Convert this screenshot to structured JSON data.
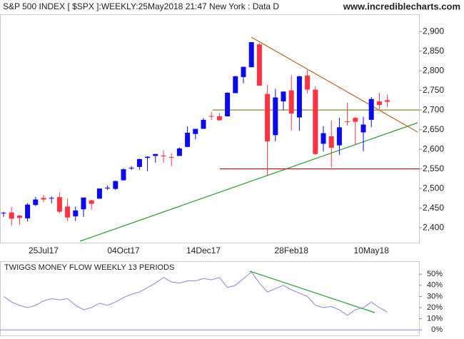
{
  "chart_data": [
    {
      "type": "candlestick",
      "title": "S&P 500 INDEX [ $SPX ]:WEEKLY:25May2018 21:47 New York : Data D",
      "source": "www.incrediblecharts.com",
      "categories": [
        null,
        null,
        null,
        null,
        null,
        "25Jul17",
        null,
        null,
        null,
        null,
        null,
        null,
        null,
        null,
        null,
        "04Oct17",
        null,
        null,
        null,
        null,
        null,
        null,
        null,
        null,
        null,
        "14Dec17",
        null,
        null,
        null,
        null,
        null,
        null,
        null,
        null,
        null,
        null,
        "28Feb18",
        null,
        null,
        null,
        null,
        null,
        null,
        null,
        null,
        null,
        "10May18",
        null,
        null
      ],
      "open": [
        2437,
        2439,
        2431,
        2424,
        2458,
        2476,
        2475,
        2478,
        2454,
        2429,
        2447,
        2470,
        2474,
        2500,
        2499,
        2521,
        2551,
        2555,
        2578,
        2583,
        2584,
        2580,
        2583,
        2606,
        2639,
        2652,
        2685,
        2684,
        2684,
        2743,
        2784,
        2809,
        2867,
        2741,
        2636,
        2722,
        2750,
        2681,
        2788,
        2752,
        2614,
        2633,
        2610,
        2671,
        2680,
        2643,
        2675,
        2722,
        2725
      ],
      "high": [
        2441,
        2453,
        2433,
        2463,
        2479,
        2484,
        2480,
        2490,
        2474,
        2454,
        2477,
        2471,
        2500,
        2508,
        2520,
        2552,
        2557,
        2576,
        2582,
        2588,
        2597,
        2590,
        2605,
        2658,
        2652,
        2680,
        2695,
        2692,
        2745,
        2787,
        2811,
        2873,
        2870,
        2764,
        2754,
        2748,
        2789,
        2787,
        2802,
        2761,
        2659,
        2673,
        2680,
        2718,
        2683,
        2683,
        2733,
        2743,
        2739
      ],
      "low": [
        2428,
        2405,
        2407,
        2416,
        2455,
        2465,
        2462,
        2437,
        2417,
        2417,
        2428,
        2446,
        2474,
        2496,
        2496,
        2520,
        2547,
        2548,
        2544,
        2566,
        2566,
        2557,
        2583,
        2605,
        2625,
        2652,
        2675,
        2673,
        2683,
        2743,
        2768,
        2809,
        2763,
        2533,
        2620,
        2699,
        2648,
        2647,
        2743,
        2585,
        2594,
        2553,
        2586,
        2660,
        2612,
        2595,
        2656,
        2702,
        2707
      ],
      "close": [
        2438,
        2423,
        2425,
        2459,
        2472,
        2472,
        2476,
        2441,
        2426,
        2444,
        2477,
        2461,
        2500,
        2502,
        2519,
        2549,
        2553,
        2575,
        2581,
        2588,
        2582,
        2579,
        2602,
        2642,
        2652,
        2675,
        2683,
        2674,
        2744,
        2786,
        2810,
        2873,
        2762,
        2620,
        2732,
        2747,
        2691,
        2786,
        2752,
        2588,
        2641,
        2604,
        2656,
        2670,
        2670,
        2663,
        2728,
        2713,
        2721
      ],
      "up_color": "#0a0aee",
      "down_color": "#ff3344",
      "levels": [
        {
          "value": 2700,
          "color": "#8a8a2a"
        },
        {
          "value": 2550,
          "color": "#a52a2a"
        }
      ],
      "ylim": [
        2362,
        2944
      ],
      "yticks": [
        {
          "value": 2400,
          "label": "2,400"
        },
        {
          "value": 2450,
          "label": "2,450"
        },
        {
          "value": 2500,
          "label": "2,500"
        },
        {
          "value": 2550,
          "label": "2,550"
        },
        {
          "value": 2600,
          "label": "2,600"
        },
        {
          "value": 2650,
          "label": "2,650"
        },
        {
          "value": 2700,
          "label": "2,700"
        },
        {
          "value": 2750,
          "label": "2,750"
        },
        {
          "value": 2800,
          "label": "2,800"
        },
        {
          "value": 2850,
          "label": "2,850"
        },
        {
          "value": 2900,
          "label": "2,900"
        }
      ]
    },
    {
      "type": "line",
      "title": "TWIGGS MONEY FLOW WEEKLY 13 PERIODS",
      "values": [
        30,
        25,
        22,
        20,
        22,
        26,
        28,
        27,
        28,
        22,
        18,
        20,
        24,
        22,
        25,
        29,
        32,
        34,
        38,
        42,
        47,
        43,
        42,
        44,
        44,
        46,
        45,
        47,
        38,
        40,
        46,
        52,
        42,
        34,
        37,
        40,
        36,
        33,
        30,
        22,
        20,
        21,
        18,
        13,
        18,
        20,
        25,
        20,
        16
      ],
      "color": "#8888dd",
      "ylim": [
        -5,
        61
      ],
      "yticks": [
        {
          "value": 0,
          "label": "0%"
        },
        {
          "value": 10,
          "label": "10%"
        },
        {
          "value": 20,
          "label": "20%"
        },
        {
          "value": 30,
          "label": "30%"
        },
        {
          "value": 40,
          "label": "40%"
        },
        {
          "value": 50,
          "label": "50%"
        }
      ]
    }
  ]
}
